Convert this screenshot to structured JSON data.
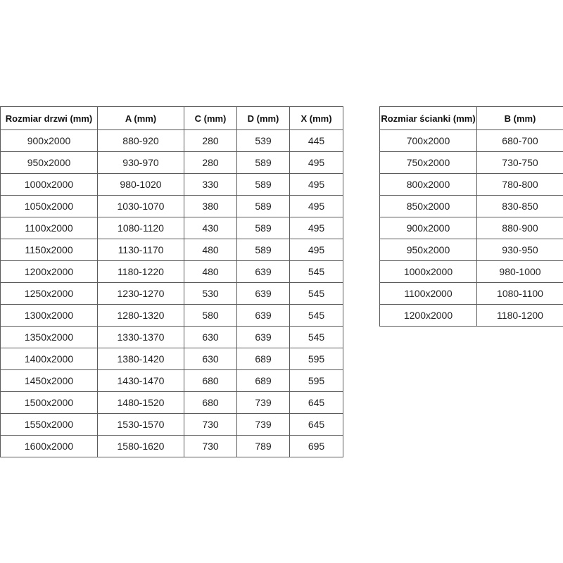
{
  "door_table": {
    "headers": [
      "Rozmiar drzwi (mm)",
      "A (mm)",
      "C (mm)",
      "D (mm)",
      "X (mm)"
    ],
    "rows": [
      [
        "900x2000",
        "880-920",
        "280",
        "539",
        "445"
      ],
      [
        "950x2000",
        "930-970",
        "280",
        "589",
        "495"
      ],
      [
        "1000x2000",
        "980-1020",
        "330",
        "589",
        "495"
      ],
      [
        "1050x2000",
        "1030-1070",
        "380",
        "589",
        "495"
      ],
      [
        "1100x2000",
        "1080-1120",
        "430",
        "589",
        "495"
      ],
      [
        "1150x2000",
        "1130-1170",
        "480",
        "589",
        "495"
      ],
      [
        "1200x2000",
        "1180-1220",
        "480",
        "639",
        "545"
      ],
      [
        "1250x2000",
        "1230-1270",
        "530",
        "639",
        "545"
      ],
      [
        "1300x2000",
        "1280-1320",
        "580",
        "639",
        "545"
      ],
      [
        "1350x2000",
        "1330-1370",
        "630",
        "639",
        "545"
      ],
      [
        "1400x2000",
        "1380-1420",
        "630",
        "689",
        "595"
      ],
      [
        "1450x2000",
        "1430-1470",
        "680",
        "689",
        "595"
      ],
      [
        "1500x2000",
        "1480-1520",
        "680",
        "739",
        "645"
      ],
      [
        "1550x2000",
        "1530-1570",
        "730",
        "739",
        "645"
      ],
      [
        "1600x2000",
        "1580-1620",
        "730",
        "789",
        "695"
      ]
    ]
  },
  "wall_table": {
    "headers": [
      "Rozmiar ścianki (mm)",
      "B (mm)"
    ],
    "rows": [
      [
        "700x2000",
        "680-700"
      ],
      [
        "750x2000",
        "730-750"
      ],
      [
        "800x2000",
        "780-800"
      ],
      [
        "850x2000",
        "830-850"
      ],
      [
        "900x2000",
        "880-900"
      ],
      [
        "950x2000",
        "930-950"
      ],
      [
        "1000x2000",
        "980-1000"
      ],
      [
        "1100x2000",
        "1080-1100"
      ],
      [
        "1200x2000",
        "1180-1200"
      ]
    ]
  }
}
